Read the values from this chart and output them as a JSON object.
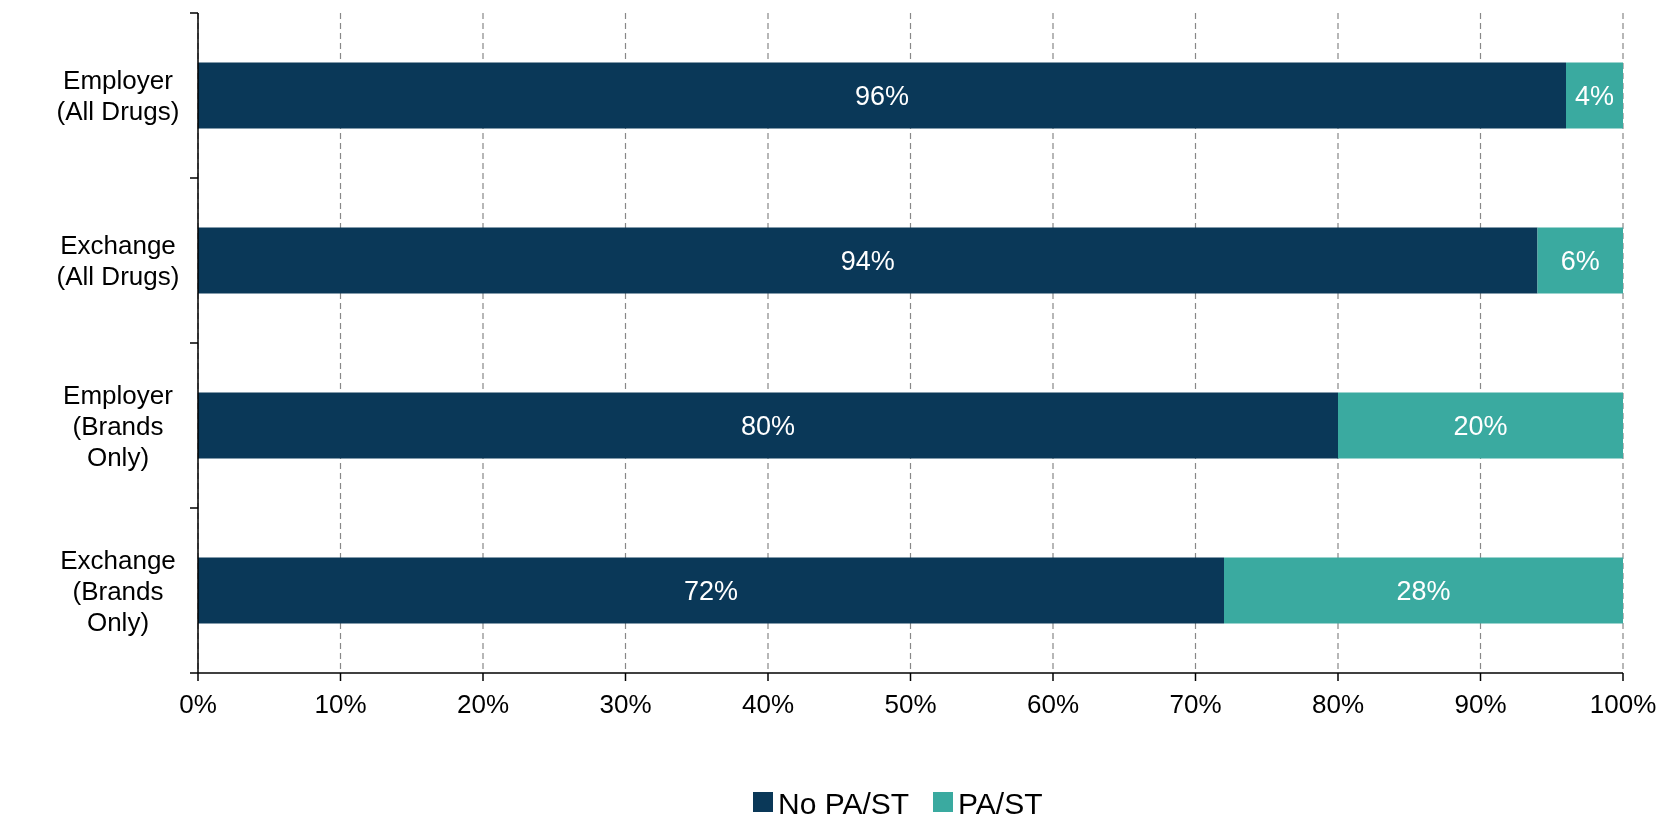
{
  "chart_data": {
    "type": "bar",
    "orientation": "horizontal",
    "stacked": true,
    "categories": [
      "Employer\n(All Drugs)",
      "Exchange\n(All Drugs)",
      "Employer\n(Brands\nOnly)",
      "Exchange\n(Brands\nOnly)"
    ],
    "series": [
      {
        "name": "No PA/ST",
        "color": "#0a3858",
        "values": [
          96,
          94,
          80,
          72
        ],
        "value_labels": [
          "96%",
          "94%",
          "80%",
          "72%"
        ]
      },
      {
        "name": "PA/ST",
        "color": "#3aaaa0",
        "values": [
          4,
          6,
          20,
          28
        ],
        "value_labels": [
          "4%",
          "6%",
          "20%",
          "28%"
        ]
      }
    ],
    "xlim": [
      0,
      100
    ],
    "xticks": [
      {
        "value": 0,
        "label": "0%"
      },
      {
        "value": 10,
        "label": "10%"
      },
      {
        "value": 20,
        "label": "20%"
      },
      {
        "value": 30,
        "label": "30%"
      },
      {
        "value": 40,
        "label": "40%"
      },
      {
        "value": 50,
        "label": "50%"
      },
      {
        "value": 60,
        "label": "60%"
      },
      {
        "value": 70,
        "label": "70%"
      },
      {
        "value": 80,
        "label": "80%"
      },
      {
        "value": 90,
        "label": "90%"
      },
      {
        "value": 100,
        "label": "100%"
      }
    ],
    "grid": "x",
    "legend": "bottom"
  }
}
